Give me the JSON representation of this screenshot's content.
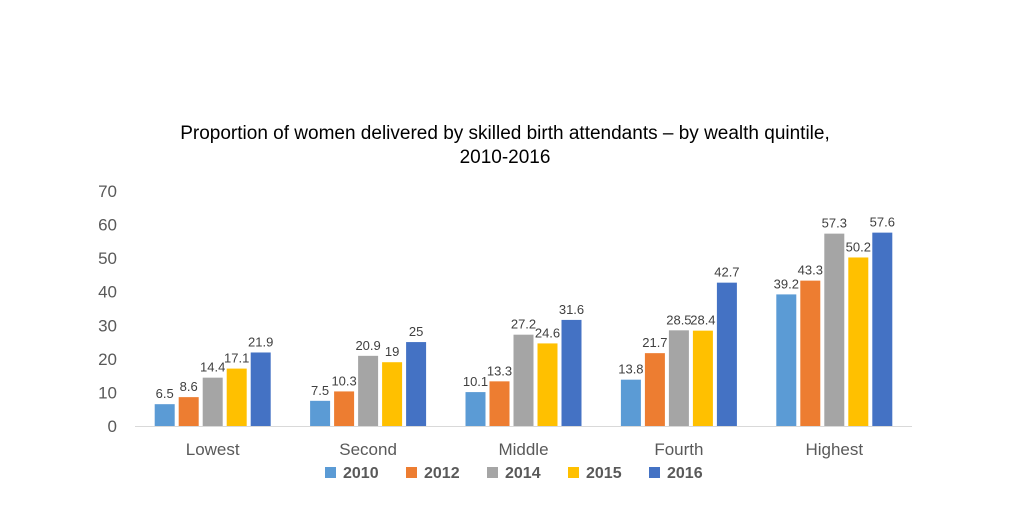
{
  "chart_data": {
    "type": "bar",
    "title_line1": "Proportion of women delivered by skilled birth attendants – by wealth quintile,",
    "title_line2": "2010-2016",
    "xlabel": "",
    "ylabel": "",
    "ylim": [
      0,
      70
    ],
    "yticks": [
      "0",
      "10",
      "20",
      "30",
      "40",
      "50",
      "60",
      "70"
    ],
    "grid": false,
    "legend_position": "bottom",
    "categories": [
      "Lowest",
      "Second",
      "Middle",
      "Fourth",
      "Highest"
    ],
    "series": [
      {
        "name": "2010",
        "color": "#5B9BD5",
        "values": [
          6.5,
          7.5,
          10.1,
          13.8,
          39.2
        ],
        "labels": [
          "6.5",
          "7.5",
          "10.1",
          "13.8",
          "39.2"
        ]
      },
      {
        "name": "2012",
        "color": "#ED7D31",
        "values": [
          8.6,
          10.3,
          13.3,
          21.7,
          43.3
        ],
        "labels": [
          "8.6",
          "10.3",
          "13.3",
          "21.7",
          "43.3"
        ]
      },
      {
        "name": "2014",
        "color": "#A5A5A5",
        "values": [
          14.4,
          20.9,
          27.2,
          28.5,
          57.3
        ],
        "labels": [
          "14.4",
          "20.9",
          "27.2",
          "28.5",
          "57.3"
        ]
      },
      {
        "name": "2015",
        "color": "#FFC000",
        "values": [
          17.1,
          19,
          24.6,
          28.4,
          50.2
        ],
        "labels": [
          "17.1",
          "19",
          "24.6",
          "28.4",
          "50.2"
        ]
      },
      {
        "name": "2016",
        "color": "#4472C4",
        "values": [
          21.9,
          25,
          31.6,
          42.7,
          57.6
        ],
        "labels": [
          "21.9",
          "25",
          "31.6",
          "42.7",
          "57.6"
        ]
      }
    ]
  }
}
